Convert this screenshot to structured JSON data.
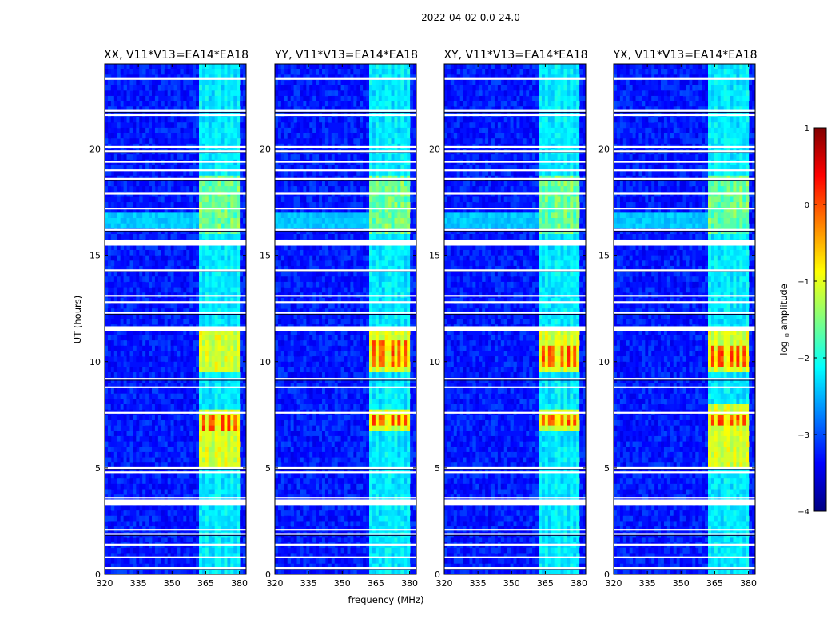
{
  "chart_data": {
    "type": "heatmap",
    "suptitle": "2022-04-02 0.0-24.0",
    "xlabel": "frequency (MHz)",
    "ylabel": "UT (hours)",
    "xlim": [
      320,
      383
    ],
    "ylim": [
      0,
      24
    ],
    "xticks": [
      "320",
      "335",
      "350",
      "365",
      "380"
    ],
    "yticks": [
      "0",
      "5",
      "10",
      "15",
      "20"
    ],
    "colormap": "jet",
    "colorbar": {
      "label": "log10 amplitude",
      "label_main": "log",
      "label_sub": "10",
      "label_rest": " amplitude",
      "range": [
        -4,
        1
      ],
      "ticks": [
        "1",
        "0",
        "−1",
        "−2",
        "−3",
        "−4"
      ]
    },
    "panels": [
      {
        "title": "XX, V11*V13=EA14*EA18",
        "band_hi": [
          [
            4.9,
            7.8
          ],
          [
            9.6,
            11.4
          ]
        ],
        "band_mid": [
          [
            15.9,
            18.8
          ]
        ],
        "peak": [
          [
            6.7,
            7.6
          ]
        ]
      },
      {
        "title": "YY, V11*V13=EA14*EA18",
        "band_hi": [
          [
            6.8,
            7.8
          ],
          [
            9.5,
            11.4
          ]
        ],
        "band_mid": [
          [
            15.9,
            18.8
          ]
        ],
        "peak": [
          [
            9.7,
            11.0
          ],
          [
            6.9,
            7.6
          ]
        ]
      },
      {
        "title": "XY, V11*V13=EA14*EA18",
        "band_hi": [
          [
            6.8,
            7.8
          ],
          [
            9.6,
            11.4
          ]
        ],
        "band_mid": [
          [
            15.9,
            18.8
          ]
        ],
        "peak": [
          [
            9.8,
            10.8
          ],
          [
            7.0,
            7.5
          ]
        ]
      },
      {
        "title": "YX, V11*V13=EA14*EA18",
        "band_hi": [
          [
            4.9,
            8.0
          ],
          [
            9.6,
            11.4
          ]
        ],
        "band_mid": [
          [
            15.9,
            18.8
          ]
        ],
        "peak": [
          [
            9.8,
            10.8
          ],
          [
            7.0,
            7.5
          ]
        ]
      }
    ],
    "rfi_band_mhz": [
      362,
      380
    ],
    "rfi_channels_mhz": [
      362.5,
      365.5,
      369.5,
      371.5,
      374.0,
      377.0,
      379.5
    ],
    "flagged_rows_ut": [
      0.3,
      0.8,
      1.4,
      1.9,
      2.1,
      3.3,
      3.4,
      3.6,
      4.8,
      5.0,
      7.6,
      8.8,
      9.2,
      11.5,
      11.6,
      12.3,
      12.8,
      13.1,
      14.3,
      15.5,
      15.7,
      16.2,
      17.2,
      17.9,
      18.6,
      19.0,
      19.4,
      19.9,
      20.1,
      21.6,
      21.8,
      23.3
    ]
  }
}
